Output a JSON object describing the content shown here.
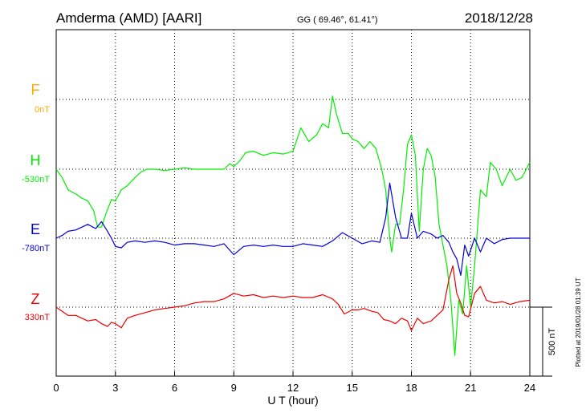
{
  "header": {
    "station": "Amderma (AMD)  [AARI]",
    "coords": "GG ( 69.46°,  61.41°)",
    "date": "2018/12/28"
  },
  "footer": {
    "plotted_at": "Plotted at 2019/01/28 01:39 UT",
    "scale_label": "500 nT"
  },
  "chart_data": {
    "type": "line",
    "title": "",
    "xlabel": "U T (hour)",
    "xlim": [
      0,
      24
    ],
    "x_ticks": [
      0,
      3,
      6,
      9,
      12,
      15,
      18,
      21,
      24
    ],
    "x_tick_labels": [
      "0",
      "3",
      "6",
      "9",
      "12",
      "15",
      "18",
      "21",
      "24"
    ],
    "grid": true,
    "scale_bar_nT": 500,
    "series": [
      {
        "name": "F",
        "baseline_label": "0nT",
        "color": "#ffaa00",
        "x": [],
        "values": []
      },
      {
        "name": "H",
        "baseline_label": "-530nT",
        "color": "#00ee00",
        "x": [
          0,
          0.3,
          0.6,
          1.0,
          1.3,
          1.6,
          1.9,
          2.1,
          2.3,
          2.5,
          2.8,
          3.0,
          3.3,
          3.6,
          4.0,
          4.3,
          4.6,
          5.0,
          5.5,
          6.0,
          6.5,
          7.0,
          7.5,
          8.0,
          8.5,
          8.8,
          9.0,
          9.3,
          9.6,
          10.0,
          10.5,
          11.0,
          11.5,
          12.0,
          12.4,
          12.8,
          13.2,
          13.5,
          13.8,
          14.0,
          14.2,
          14.5,
          14.8,
          15.0,
          15.3,
          15.6,
          15.9,
          16.2,
          16.5,
          16.7,
          16.9,
          17.0,
          17.2,
          17.4,
          17.6,
          17.8,
          18.0,
          18.2,
          18.4,
          18.6,
          18.8,
          19.0,
          19.2,
          19.4,
          19.6,
          19.8,
          20.0,
          20.2,
          20.4,
          20.6,
          20.8,
          21.0,
          21.2,
          21.5,
          21.8,
          22.0,
          22.3,
          22.6,
          23.0,
          23.3,
          23.6,
          24.0
        ],
        "values": [
          0,
          -60,
          -150,
          -180,
          -210,
          -230,
          -300,
          -420,
          -420,
          -330,
          -220,
          -230,
          -150,
          -120,
          -60,
          -20,
          0,
          0,
          -10,
          0,
          10,
          0,
          0,
          0,
          0,
          40,
          20,
          60,
          120,
          130,
          100,
          120,
          110,
          130,
          300,
          200,
          250,
          330,
          300,
          530,
          400,
          260,
          260,
          220,
          200,
          150,
          200,
          150,
          0,
          -150,
          -500,
          -600,
          -400,
          -400,
          -150,
          180,
          250,
          100,
          -450,
          0,
          150,
          100,
          -50,
          -400,
          -550,
          -700,
          -950,
          -1350,
          -950,
          -1050,
          -700,
          -1000,
          -700,
          -150,
          -200,
          50,
          0,
          -120,
          0,
          -80,
          -60,
          50
        ]
      },
      {
        "name": "E",
        "baseline_label": "-780nT",
        "color": "#0000dd",
        "x": [
          0,
          0.3,
          0.6,
          1.0,
          1.3,
          1.6,
          2.0,
          2.3,
          2.6,
          2.8,
          3.0,
          3.3,
          3.6,
          4.0,
          4.5,
          5.0,
          5.5,
          6.0,
          6.5,
          7.0,
          7.5,
          8.0,
          8.5,
          9.0,
          9.5,
          10.0,
          10.5,
          11.0,
          11.5,
          12.0,
          12.5,
          13.0,
          13.5,
          14.0,
          14.5,
          15.0,
          15.5,
          16.0,
          16.4,
          16.7,
          16.9,
          17.2,
          17.5,
          17.8,
          18.0,
          18.3,
          18.6,
          19.0,
          19.3,
          19.6,
          19.9,
          20.1,
          20.3,
          20.5,
          20.7,
          20.9,
          21.2,
          21.5,
          21.8,
          22.2,
          22.6,
          23.0,
          23.5,
          24.0
        ],
        "values": [
          0,
          20,
          50,
          60,
          80,
          100,
          70,
          120,
          50,
          0,
          -60,
          -70,
          -30,
          -20,
          -30,
          -20,
          -30,
          -50,
          -40,
          -40,
          -50,
          -60,
          -40,
          -120,
          -60,
          -50,
          -60,
          -50,
          -60,
          -60,
          -40,
          -50,
          -60,
          -20,
          40,
          0,
          -40,
          -20,
          -30,
          150,
          400,
          150,
          0,
          0,
          180,
          0,
          50,
          30,
          0,
          20,
          -30,
          -100,
          -150,
          -270,
          -50,
          -130,
          0,
          -100,
          0,
          -40,
          -10,
          0,
          0,
          0
        ]
      },
      {
        "name": "Z",
        "baseline_label": "330nT",
        "color": "#ee0000",
        "x": [
          0,
          0.3,
          0.6,
          1.0,
          1.3,
          1.6,
          2.0,
          2.3,
          2.6,
          2.8,
          3.0,
          3.3,
          3.6,
          4.0,
          4.5,
          5.0,
          5.5,
          6.0,
          6.5,
          7.0,
          7.5,
          8.0,
          8.5,
          9.0,
          9.5,
          10.0,
          10.5,
          11.0,
          11.5,
          12.0,
          12.5,
          13.0,
          13.5,
          14.0,
          14.3,
          14.6,
          15.0,
          15.3,
          15.6,
          16.0,
          16.3,
          16.6,
          16.9,
          17.2,
          17.5,
          17.8,
          18.0,
          18.3,
          18.6,
          19.0,
          19.3,
          19.6,
          19.9,
          20.1,
          20.3,
          20.5,
          20.7,
          20.9,
          21.2,
          21.5,
          21.8,
          22.2,
          22.6,
          23.0,
          23.5,
          24.0
        ],
        "values": [
          0,
          -30,
          -60,
          -60,
          -80,
          -100,
          -90,
          -120,
          -140,
          -110,
          -120,
          -150,
          -80,
          -60,
          -40,
          -20,
          -10,
          0,
          10,
          30,
          40,
          40,
          60,
          100,
          80,
          90,
          70,
          80,
          70,
          80,
          70,
          70,
          90,
          60,
          20,
          -50,
          -20,
          -20,
          -10,
          -30,
          -40,
          -90,
          -100,
          -120,
          -80,
          -100,
          -170,
          -80,
          -120,
          -100,
          -60,
          -20,
          200,
          300,
          100,
          30,
          -60,
          -70,
          100,
          150,
          50,
          30,
          40,
          20,
          40,
          50
        ]
      }
    ]
  }
}
